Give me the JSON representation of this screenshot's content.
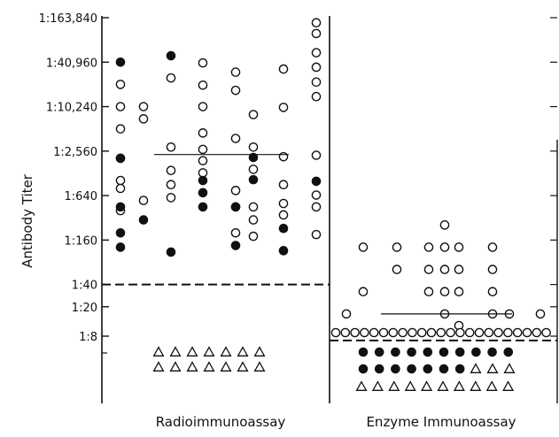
{
  "chart_data": {
    "type": "scatter",
    "ylabel": "Antibody Titer",
    "scale": "log2",
    "ticks": [
      {
        "label": "1:163,840",
        "value": 163840
      },
      {
        "label": "1:40,960",
        "value": 40960
      },
      {
        "label": "1:10,240",
        "value": 10240
      },
      {
        "label": "1:2,560",
        "value": 2560
      },
      {
        "label": "1:640",
        "value": 640
      },
      {
        "label": "1:160",
        "value": 160
      },
      {
        "label": "1:40",
        "value": 40
      },
      {
        "label": "1:20",
        "value": 20
      },
      {
        "label": "1:8",
        "value": 8
      }
    ],
    "cutoffs": [
      {
        "panel": "radioimmunoassay",
        "value": 40
      },
      {
        "panel": "enzyme_immunoassay",
        "value": 7
      }
    ],
    "panels": [
      {
        "label": "Radioimmunoassay",
        "median": 2300,
        "columns": [
          {
            "open": [
              20480,
              10240,
              5120,
              2048,
              1024,
              800,
              400
            ],
            "filled": [
              40960,
              2048,
              450,
              200,
              128
            ]
          },
          {
            "open": [
              10240,
              7000,
              550
            ],
            "filled": [
              300
            ]
          },
          {
            "open": [
              25000,
              2900,
              1400,
              900,
              600
            ],
            "filled": [
              50000,
              110
            ]
          },
          {
            "open": [
              40000,
              20000,
              10240,
              4500,
              2700,
              1900,
              1300
            ],
            "filled": [
              1024,
              700,
              450
            ]
          },
          {
            "open": [
              30000,
              17000,
              3800,
              750,
              450,
              200
            ],
            "filled": [
              450,
              135
            ]
          },
          {
            "open": [
              8000,
              2900,
              1450,
              450,
              300,
              180
            ],
            "filled": [
              2100,
              1050
            ]
          },
          {
            "open": [
              33000,
              10000,
              2150,
              900,
              500,
              350
            ],
            "filled": [
              230,
              115
            ]
          },
          {
            "open": [
              140000,
              100000,
              55000,
              35000,
              22000,
              14000,
              2250,
              650,
              450,
              190
            ],
            "filled": [
              1000
            ]
          }
        ],
        "filled_columns": [],
        "negatives": {
          "marker": "triangle",
          "columns": 7,
          "rows": 2,
          "count": 14
        }
      },
      {
        "label": "Enzyme Immunoassay",
        "median": 16,
        "columns": [
          {
            "open": [
              8,
              16
            ],
            "filled": []
          },
          {
            "open": [
              8,
              32,
              128
            ],
            "filled": []
          },
          {
            "open": [
              8,
              64,
              128
            ],
            "filled": []
          },
          {
            "open": [
              8,
              32,
              64,
              128
            ],
            "filled": []
          },
          {
            "open": [
              8,
              16,
              32,
              64,
              128,
              256
            ],
            "filled": []
          },
          {
            "open": [
              8,
              9,
              32,
              64,
              128
            ],
            "filled": []
          },
          {
            "open": [
              8,
              16,
              32,
              64,
              128
            ],
            "filled": []
          },
          {
            "open": [
              8,
              16
            ],
            "filled": []
          },
          {
            "open": [
              8,
              16
            ],
            "filled": []
          }
        ],
        "baseline_row": {
          "value": 8,
          "count": 23
        },
        "filled_rows": [
          {
            "count": 10
          },
          {
            "count": 7
          }
        ],
        "negatives": {
          "marker": "triangle",
          "rows": 1,
          "count": 10
        }
      }
    ]
  }
}
